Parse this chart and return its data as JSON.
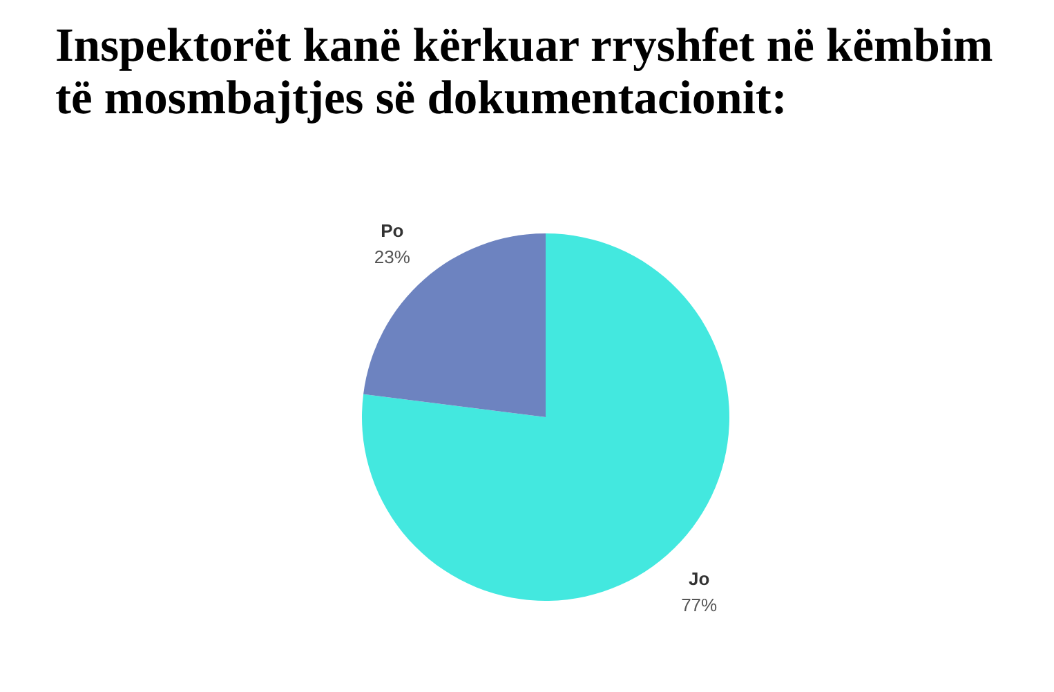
{
  "chart_data": {
    "type": "pie",
    "title": "Inspektorët kanë kërkuar rryshfet në këmbim të mosmbajtjes së dokumentacionit:",
    "categories": [
      "Jo",
      "Po"
    ],
    "values": [
      77,
      23
    ],
    "colors": [
      "#43e8df",
      "#6d83c0"
    ],
    "value_labels": [
      "77%",
      "23%"
    ]
  }
}
